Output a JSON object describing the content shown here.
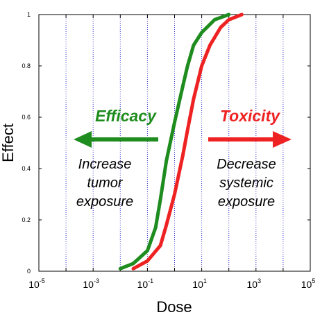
{
  "chart_data": {
    "type": "line",
    "xlabel": "Dose",
    "ylabel": "Effect",
    "x_scale": "log",
    "xlim": [
      1e-05,
      100000
    ],
    "ylim": [
      0,
      1
    ],
    "x_ticks": [
      {
        "base": "10",
        "exp": "-5",
        "value": 1e-05
      },
      {
        "base": "10",
        "exp": "-3",
        "value": 0.001
      },
      {
        "base": "10",
        "exp": "-1",
        "value": 0.1
      },
      {
        "base": "10",
        "exp": "1",
        "value": 10
      },
      {
        "base": "10",
        "exp": "3",
        "value": 1000
      },
      {
        "base": "10",
        "exp": "5",
        "value": 100000
      }
    ],
    "y_ticks": [
      "0",
      "0.2",
      "0.4",
      "0.6",
      "0.8",
      "1"
    ],
    "grid": "vertical dotted lines at each decade",
    "series": [
      {
        "color": "#1e8c1e",
        "x": [
          0.01,
          0.03,
          0.1,
          0.2,
          0.3,
          0.5,
          1,
          2,
          3,
          5,
          10,
          30,
          100
        ],
        "y": [
          0.01,
          0.03,
          0.08,
          0.17,
          0.28,
          0.43,
          0.58,
          0.72,
          0.8,
          0.88,
          0.93,
          0.98,
          1.0
        ]
      },
      {
        "color": "#ee2222",
        "x": [
          0.03,
          0.1,
          0.3,
          0.5,
          1,
          2,
          3,
          5,
          10,
          20,
          50,
          100,
          300
        ],
        "y": [
          0.01,
          0.04,
          0.1,
          0.18,
          0.3,
          0.45,
          0.55,
          0.67,
          0.8,
          0.88,
          0.95,
          0.98,
          1.0
        ]
      }
    ]
  },
  "annotations": {
    "efficacy": {
      "title": "Efficacy",
      "color": "#1e8c1e",
      "lines": [
        "Increase",
        "tumor",
        "exposure"
      ]
    },
    "toxicity": {
      "title": "Toxicity",
      "color": "#ee2222",
      "lines": [
        "Decrease",
        "systemic",
        "exposure"
      ]
    }
  }
}
